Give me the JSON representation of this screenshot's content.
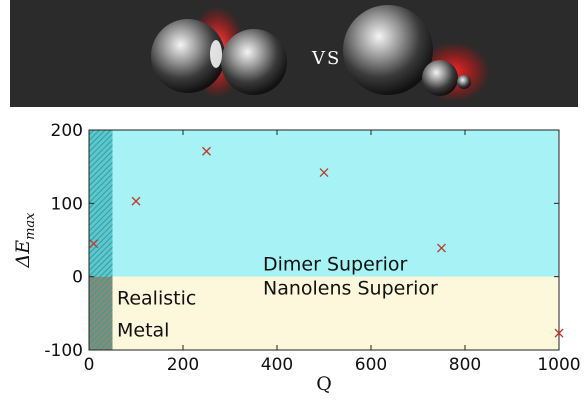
{
  "banner": {
    "vs_label": "VS"
  },
  "chart_data": {
    "type": "scatter",
    "title": "",
    "xlabel": "Q",
    "ylabel": "ΔE",
    "ylabel_subscript": "max",
    "xlim": [
      0,
      1000
    ],
    "ylim": [
      -100,
      200
    ],
    "xticks": [
      0,
      200,
      400,
      600,
      800,
      1000
    ],
    "yticks": [
      -100,
      0,
      100,
      200
    ],
    "grid": false,
    "marker": "x",
    "marker_color": "#c0392b",
    "x": [
      10,
      100,
      250,
      500,
      750,
      1000
    ],
    "y": [
      45,
      103,
      171,
      142,
      39,
      -77
    ],
    "regions": [
      {
        "name": "Dimer Superior",
        "y_range": [
          0,
          200
        ],
        "color": "#a6f2f5"
      },
      {
        "name": "Nanolens Superior",
        "y_range": [
          -100,
          0
        ],
        "color": "#fdf8dc"
      },
      {
        "name": "Realistic Metal",
        "x_range": [
          0,
          50
        ],
        "color": "#27a3a8"
      }
    ],
    "annotations": {
      "dimer": "Dimer Superior",
      "nanolens": "Nanolens Superior",
      "realistic_line1": "Realistic",
      "realistic_line2": "Metal"
    }
  }
}
